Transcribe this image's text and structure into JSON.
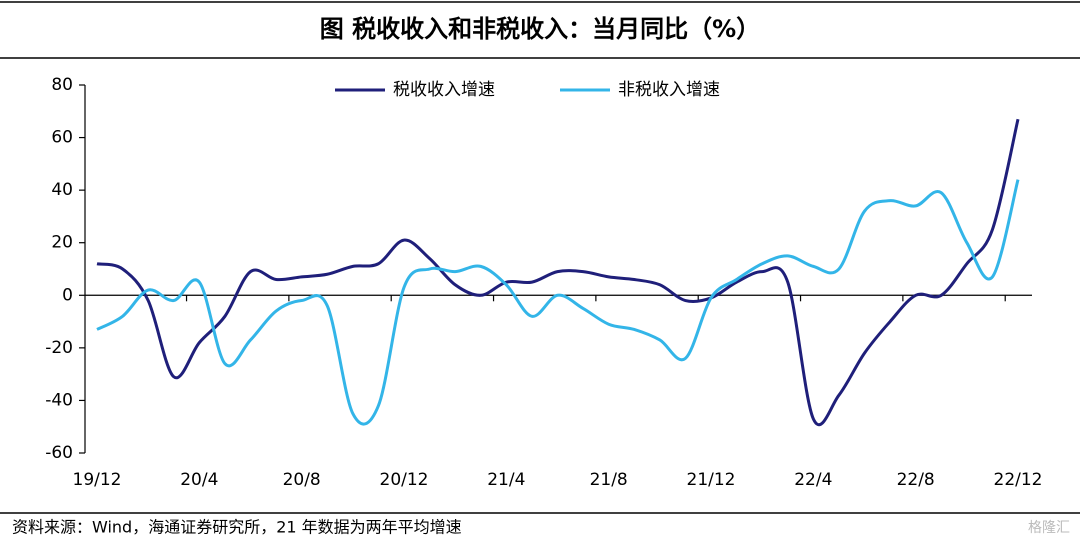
{
  "chart_data": {
    "type": "line",
    "title": "图  税收收入和非税收入：当月同比（%）",
    "source": "资料来源：Wind，海通证券研究所，21 年数据为两年平均增速",
    "watermark": "格隆汇",
    "categories": [
      "19/12",
      null,
      null,
      null,
      "20/4",
      null,
      null,
      null,
      "20/8",
      null,
      null,
      null,
      "20/12",
      null,
      null,
      null,
      "21/4",
      null,
      null,
      null,
      "21/8",
      null,
      null,
      null,
      "21/12",
      null,
      null,
      null,
      "22/4",
      null,
      null,
      null,
      "22/8",
      null,
      null,
      null,
      "22/12"
    ],
    "series": [
      {
        "name": "税收收入增速",
        "color": "#1f1f7a",
        "values": [
          12,
          10,
          -2,
          -31,
          -18,
          -8,
          9,
          6,
          7,
          8,
          11,
          12,
          21,
          14,
          4,
          0,
          5,
          5,
          9,
          9,
          7,
          6,
          4,
          -2,
          -1,
          5,
          9,
          5,
          -47,
          -38,
          -22,
          -10,
          0,
          0,
          12,
          25,
          67
        ]
      },
      {
        "name": "非税收入增速",
        "color": "#33b5e8",
        "values": [
          -13,
          -8,
          2,
          -2,
          5,
          -26,
          -17,
          -6,
          -2,
          -4,
          -45,
          -42,
          3,
          10,
          9,
          11,
          4,
          -8,
          0,
          -5,
          -11,
          -13,
          -17,
          -24,
          -1,
          6,
          12,
          15,
          11,
          10,
          32,
          36,
          34,
          39,
          20,
          7,
          44
        ]
      }
    ],
    "ylim": [
      -60,
      80
    ],
    "yticks": [
      -60,
      -40,
      -20,
      0,
      20,
      40,
      60,
      80
    ],
    "legend": "top"
  }
}
